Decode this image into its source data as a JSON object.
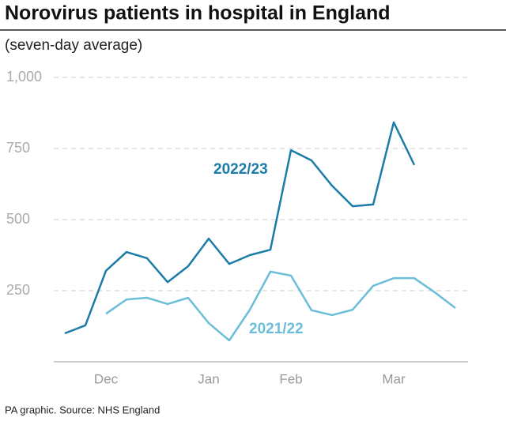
{
  "chart_data": {
    "type": "line",
    "title": "Norovirus patients in hospital in England",
    "subtitle": "(seven-day average)",
    "source": "PA graphic. Source: NHS England",
    "categories": [
      null,
      null,
      "Dec",
      null,
      null,
      null,
      null,
      "Jan",
      null,
      null,
      null,
      "Feb",
      null,
      null,
      null,
      null,
      "Mar",
      null,
      null,
      null
    ],
    "series": [
      {
        "name": "2022/23",
        "color": "#1b7ca8",
        "values": [
          100,
          128,
          320,
          386,
          364,
          280,
          336,
          433,
          344,
          375,
          394,
          744,
          708,
          619,
          547,
          553,
          842,
          692,
          null,
          null
        ]
      },
      {
        "name": "2021/22",
        "color": "#6cbdd9",
        "values": [
          null,
          null,
          169,
          219,
          225,
          203,
          225,
          136,
          75,
          183,
          317,
          303,
          181,
          164,
          183,
          267,
          294,
          294,
          244,
          189
        ]
      }
    ],
    "ylim": [
      0,
      1000
    ],
    "yticks": [
      250,
      500,
      750,
      {
        "value": 1000,
        "label": "1,000"
      }
    ],
    "grid": true
  }
}
